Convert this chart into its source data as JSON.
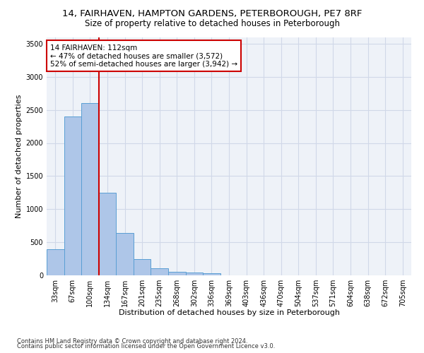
{
  "title1": "14, FAIRHAVEN, HAMPTON GARDENS, PETERBOROUGH, PE7 8RF",
  "title2": "Size of property relative to detached houses in Peterborough",
  "xlabel": "Distribution of detached houses by size in Peterborough",
  "ylabel": "Number of detached properties",
  "footnote1": "Contains HM Land Registry data © Crown copyright and database right 2024.",
  "footnote2": "Contains public sector information licensed under the Open Government Licence v3.0.",
  "bar_labels": [
    "33sqm",
    "67sqm",
    "100sqm",
    "134sqm",
    "167sqm",
    "201sqm",
    "235sqm",
    "268sqm",
    "302sqm",
    "336sqm",
    "369sqm",
    "403sqm",
    "436sqm",
    "470sqm",
    "504sqm",
    "537sqm",
    "571sqm",
    "604sqm",
    "638sqm",
    "672sqm",
    "705sqm"
  ],
  "bar_values": [
    390,
    2400,
    2600,
    1250,
    640,
    245,
    105,
    55,
    45,
    30,
    0,
    0,
    0,
    0,
    0,
    0,
    0,
    0,
    0,
    0,
    0
  ],
  "bar_color": "#aec6e8",
  "bar_edge_color": "#5a9fd4",
  "grid_color": "#d0d8e8",
  "background_color": "#eef2f8",
  "vline_x": 2.5,
  "vline_color": "#cc0000",
  "annotation_text": "14 FAIRHAVEN: 112sqm\n← 47% of detached houses are smaller (3,572)\n52% of semi-detached houses are larger (3,942) →",
  "box_color": "#ffffff",
  "box_edge_color": "#cc0000",
  "ylim": [
    0,
    3600
  ],
  "yticks": [
    0,
    500,
    1000,
    1500,
    2000,
    2500,
    3000,
    3500
  ],
  "title1_fontsize": 9.5,
  "title2_fontsize": 8.5,
  "xlabel_fontsize": 8,
  "ylabel_fontsize": 8,
  "annotation_fontsize": 7.5,
  "tick_fontsize": 7,
  "footnote_fontsize": 6
}
